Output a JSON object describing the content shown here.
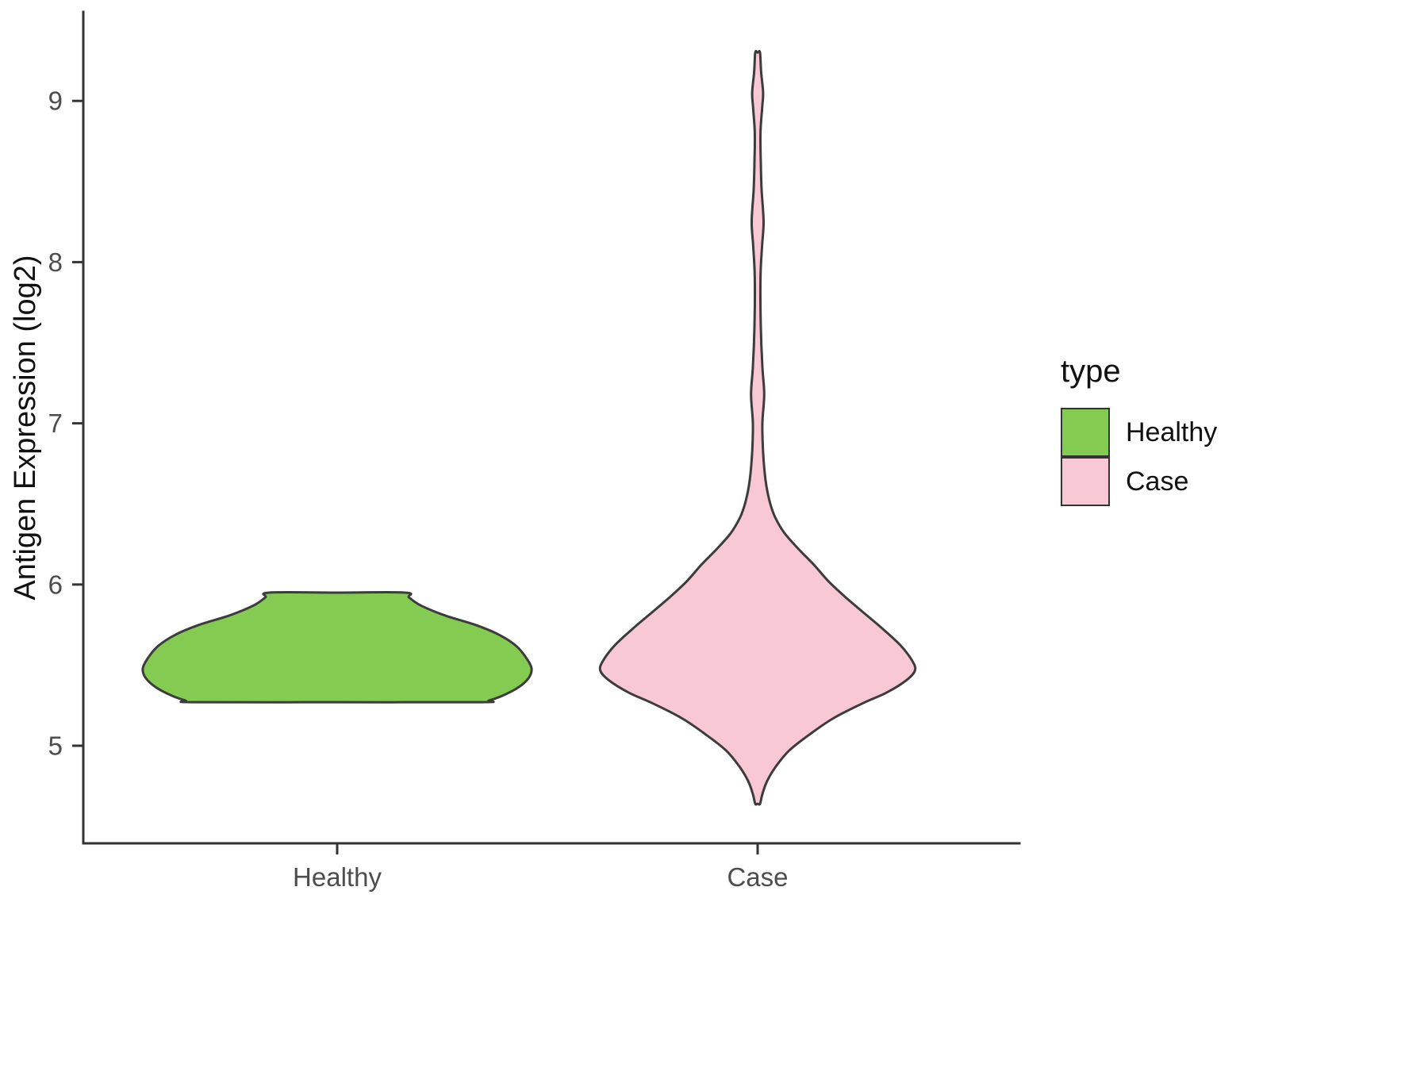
{
  "chart_data": {
    "type": "violin",
    "title": "",
    "xlabel": "",
    "ylabel": "Antigen Expression (log2)",
    "categories": [
      "Healthy",
      "Case"
    ],
    "y_ticks": [
      5,
      6,
      7,
      8,
      9
    ],
    "ylim": [
      4.4,
      9.55
    ],
    "grid": false,
    "axis_color": "#333333",
    "tick_text_color": "#4d4d4d",
    "title_text_color": "#111111",
    "legend": {
      "title": "type",
      "position": "right",
      "entries": [
        {
          "label": "Healthy",
          "color": "#84cb52"
        },
        {
          "label": "Case",
          "color": "#f8c8d4"
        }
      ]
    },
    "series": [
      {
        "name": "Healthy",
        "fill": "#84cb52",
        "stroke": "#3c3c3c",
        "relative_width": 1.0,
        "value_range": [
          5.27,
          5.95
        ],
        "profile": [
          [
            5.95,
            0.35
          ],
          [
            5.92,
            0.37
          ],
          [
            5.87,
            0.43
          ],
          [
            5.81,
            0.55
          ],
          [
            5.75,
            0.71
          ],
          [
            5.69,
            0.83
          ],
          [
            5.62,
            0.92
          ],
          [
            5.55,
            0.97
          ],
          [
            5.48,
            1.0
          ],
          [
            5.42,
            0.985
          ],
          [
            5.36,
            0.93
          ],
          [
            5.31,
            0.85
          ],
          [
            5.28,
            0.78
          ],
          [
            5.27,
            0.74
          ]
        ]
      },
      {
        "name": "Case",
        "fill": "#f8c8d4",
        "stroke": "#3c3c3c",
        "relative_width": 0.81,
        "value_range": [
          4.64,
          9.3
        ],
        "profile": [
          [
            9.3,
            0.015
          ],
          [
            9.18,
            0.022
          ],
          [
            9.05,
            0.035
          ],
          [
            8.95,
            0.028
          ],
          [
            8.8,
            0.018
          ],
          [
            8.62,
            0.02
          ],
          [
            8.45,
            0.025
          ],
          [
            8.25,
            0.038
          ],
          [
            8.1,
            0.028
          ],
          [
            7.9,
            0.018
          ],
          [
            7.6,
            0.02
          ],
          [
            7.35,
            0.03
          ],
          [
            7.18,
            0.042
          ],
          [
            7.0,
            0.03
          ],
          [
            6.82,
            0.035
          ],
          [
            6.65,
            0.05
          ],
          [
            6.52,
            0.075
          ],
          [
            6.42,
            0.11
          ],
          [
            6.32,
            0.17
          ],
          [
            6.22,
            0.26
          ],
          [
            6.12,
            0.36
          ],
          [
            6.02,
            0.45
          ],
          [
            5.92,
            0.56
          ],
          [
            5.82,
            0.68
          ],
          [
            5.72,
            0.8
          ],
          [
            5.62,
            0.91
          ],
          [
            5.53,
            0.98
          ],
          [
            5.47,
            1.0
          ],
          [
            5.41,
            0.95
          ],
          [
            5.33,
            0.82
          ],
          [
            5.26,
            0.66
          ],
          [
            5.17,
            0.48
          ],
          [
            5.07,
            0.33
          ],
          [
            4.97,
            0.2
          ],
          [
            4.87,
            0.115
          ],
          [
            4.78,
            0.06
          ],
          [
            4.7,
            0.03
          ],
          [
            4.64,
            0.015
          ]
        ]
      }
    ]
  }
}
